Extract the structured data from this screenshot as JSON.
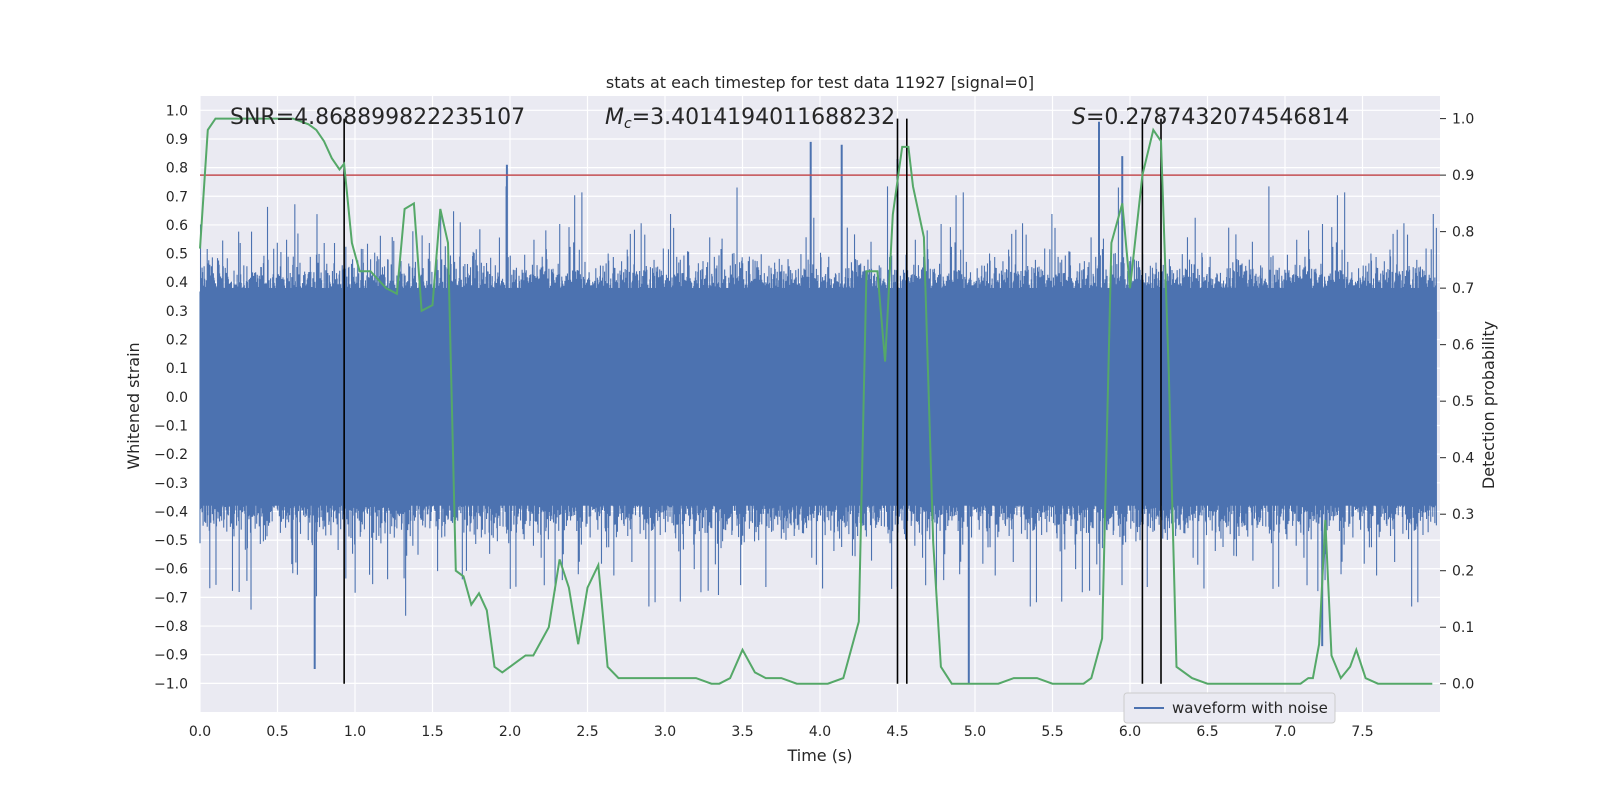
{
  "chart_data": {
    "type": "line",
    "title": "stats at each timestep for test data 11927 [signal=0]",
    "xlabel": "Time (s)",
    "ylabel": "Whitened strain",
    "y2label": "Detection probability",
    "xlim": [
      0.0,
      8.0
    ],
    "ylim": [
      -1.1,
      1.05
    ],
    "y2lim": [
      -0.05,
      1.04
    ],
    "xticks": [
      "0.0",
      "0.5",
      "1.0",
      "1.5",
      "2.0",
      "2.5",
      "3.0",
      "3.5",
      "4.0",
      "4.5",
      "5.0",
      "5.5",
      "6.0",
      "6.5",
      "7.0",
      "7.5"
    ],
    "yticks": [
      "1.0",
      "0.9",
      "0.8",
      "0.7",
      "0.6",
      "0.5",
      "0.4",
      "0.3",
      "0.2",
      "0.1",
      "0.0",
      "-0.1",
      "-0.2",
      "-0.3",
      "-0.4",
      "-0.5",
      "-0.6",
      "-0.7",
      "-0.8",
      "-0.9",
      "-1.0"
    ],
    "y2ticks": [
      "1.0",
      "0.9",
      "0.8",
      "0.7",
      "0.6",
      "0.5",
      "0.4",
      "0.3",
      "0.2",
      "0.1",
      "0.0"
    ],
    "annotations": {
      "snr": {
        "prefix": "SNR",
        "value": "=4.868899822235107"
      },
      "mc": {
        "prefix": "M",
        "sub": "c",
        "value": "=3.4014194011688232"
      },
      "s": {
        "prefix": "S",
        "value": "=0.2787432074546814"
      }
    },
    "threshold": 0.9,
    "vertical_lines_s": [
      0.93,
      4.5,
      4.56,
      6.08,
      6.2
    ],
    "series": [
      {
        "name": "waveform with noise",
        "axis": "left",
        "color": "#4c72b0",
        "envelope_typical": 0.42,
        "spikes": [
          {
            "x": 0.74,
            "y": -0.95
          },
          {
            "x": 1.98,
            "y": 0.81
          },
          {
            "x": 3.94,
            "y": 0.89
          },
          {
            "x": 4.14,
            "y": 0.88
          },
          {
            "x": 4.96,
            "y": -1.0
          },
          {
            "x": 5.8,
            "y": 0.96
          },
          {
            "x": 5.95,
            "y": 0.84
          },
          {
            "x": 7.24,
            "y": -0.87
          },
          {
            "x": 4.5,
            "y": 0.83
          }
        ]
      },
      {
        "name": "detection probability",
        "axis": "right",
        "color": "#55a868",
        "x": [
          0.0,
          0.05,
          0.1,
          0.2,
          0.3,
          0.4,
          0.5,
          0.6,
          0.7,
          0.75,
          0.8,
          0.85,
          0.9,
          0.93,
          0.98,
          1.03,
          1.1,
          1.2,
          1.27,
          1.32,
          1.38,
          1.43,
          1.5,
          1.55,
          1.6,
          1.65,
          1.7,
          1.75,
          1.8,
          1.85,
          1.9,
          1.95,
          2.0,
          2.05,
          2.1,
          2.15,
          2.25,
          2.32,
          2.38,
          2.44,
          2.5,
          2.57,
          2.63,
          2.7,
          2.8,
          2.9,
          3.0,
          3.1,
          3.2,
          3.3,
          3.35,
          3.42,
          3.5,
          3.58,
          3.65,
          3.75,
          3.85,
          3.95,
          4.05,
          4.15,
          4.25,
          4.3,
          4.37,
          4.42,
          4.47,
          4.53,
          4.57,
          4.6,
          4.67,
          4.73,
          4.78,
          4.85,
          4.95,
          5.05,
          5.15,
          5.25,
          5.3,
          5.4,
          5.5,
          5.6,
          5.7,
          5.75,
          5.82,
          5.88,
          5.95,
          6.0,
          6.08,
          6.15,
          6.2,
          6.25,
          6.3,
          6.4,
          6.5,
          6.6,
          6.7,
          6.8,
          6.9,
          7.0,
          7.1,
          7.15,
          7.18,
          7.22,
          7.26,
          7.3,
          7.36,
          7.42,
          7.46,
          7.52,
          7.6,
          7.7,
          7.9,
          7.95
        ],
        "y": [
          0.77,
          0.98,
          1.0,
          1.0,
          1.0,
          1.0,
          1.0,
          1.0,
          0.99,
          0.98,
          0.96,
          0.93,
          0.91,
          0.92,
          0.78,
          0.73,
          0.73,
          0.7,
          0.69,
          0.84,
          0.85,
          0.66,
          0.67,
          0.84,
          0.78,
          0.2,
          0.19,
          0.14,
          0.16,
          0.13,
          0.03,
          0.02,
          0.03,
          0.04,
          0.05,
          0.05,
          0.1,
          0.22,
          0.17,
          0.07,
          0.17,
          0.21,
          0.03,
          0.01,
          0.01,
          0.01,
          0.01,
          0.01,
          0.01,
          0.0,
          0.0,
          0.01,
          0.06,
          0.02,
          0.01,
          0.01,
          0.0,
          0.0,
          0.0,
          0.01,
          0.11,
          0.73,
          0.73,
          0.57,
          0.83,
          0.95,
          0.95,
          0.88,
          0.79,
          0.25,
          0.03,
          0.0,
          0.0,
          0.0,
          0.0,
          0.01,
          0.01,
          0.01,
          0.0,
          0.0,
          0.0,
          0.01,
          0.08,
          0.78,
          0.85,
          0.7,
          0.9,
          0.98,
          0.96,
          0.55,
          0.03,
          0.01,
          0.0,
          0.0,
          0.0,
          0.0,
          0.0,
          0.0,
          0.0,
          0.01,
          0.01,
          0.07,
          0.29,
          0.05,
          0.01,
          0.03,
          0.06,
          0.01,
          0.0,
          0.0,
          0.0,
          0.0
        ]
      }
    ],
    "legend": {
      "label": "waveform with noise",
      "placement": "bottom-right"
    }
  }
}
